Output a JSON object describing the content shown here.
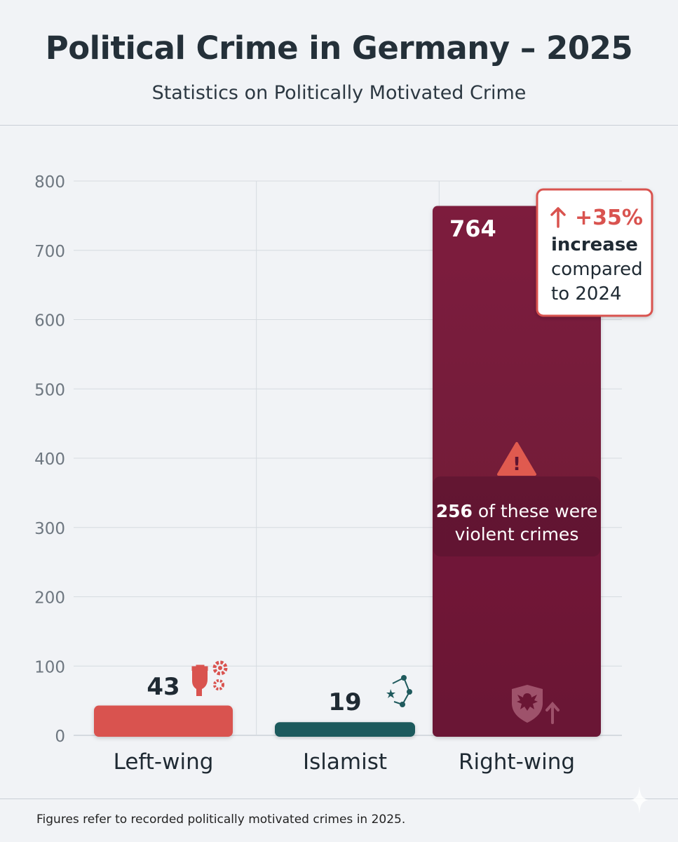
{
  "chart_data": {
    "type": "bar",
    "title": "Political Crime in Germany – 2025",
    "subtitle": "Statistics on Politically Motivated Crime",
    "categories": [
      "Left-wing",
      "Islamist",
      "Right-wing"
    ],
    "values": [
      43,
      19,
      764
    ],
    "data_labels": [
      "43",
      "19",
      "764"
    ],
    "bar_colors": [
      "#d9534f",
      "#1f5a5d",
      "#7a1d3d"
    ],
    "ylim": [
      0,
      800
    ],
    "yticks": [
      0,
      100,
      200,
      300,
      400,
      500,
      600,
      700,
      800
    ],
    "grid": true,
    "icons": [
      "raised-fist-gears-icon",
      "crescent-star-network-icon",
      "eagle-shield-arrow-icon"
    ],
    "annotations": {
      "increase": {
        "change": "+35%",
        "line1": "increase",
        "line2": "compared",
        "line3": "to 2024"
      },
      "violent": {
        "count": "256",
        "text_a": " of these were",
        "text_b": "violent crimes"
      }
    }
  },
  "footnote": "Figures refer to recorded politically motivated crimes in 2025."
}
